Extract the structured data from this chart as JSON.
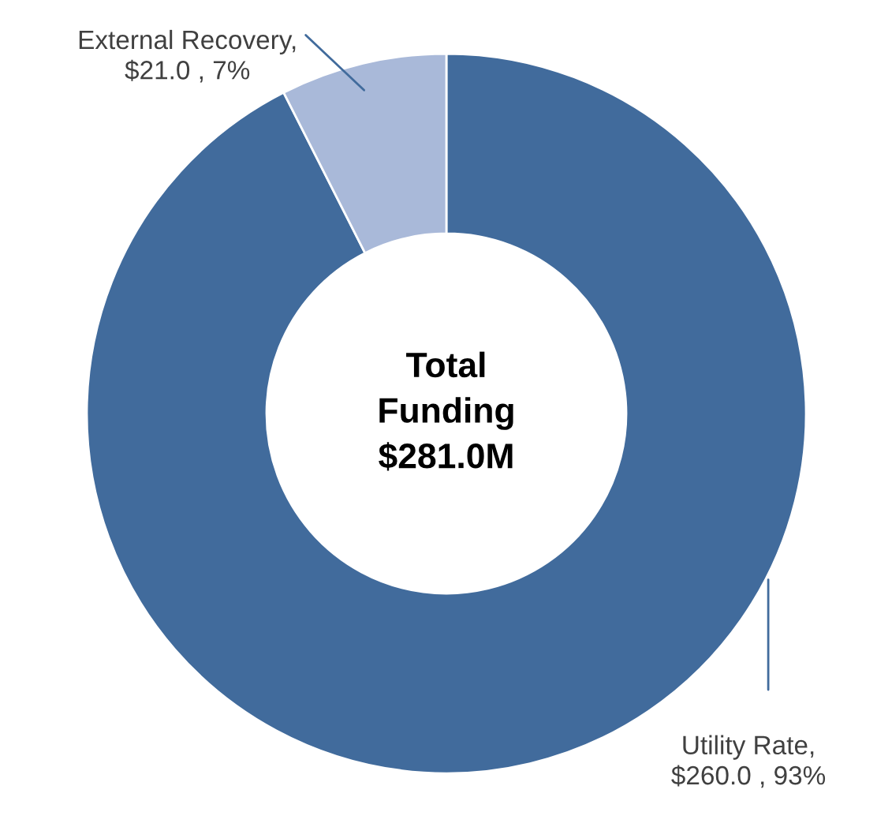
{
  "chart_data": {
    "type": "donut",
    "categories": [
      "Utility Rate",
      "External Recovery"
    ],
    "values": [
      260.0,
      21.0
    ],
    "value_labels": [
      ",\n$260.0 , 93%",
      ",\n$21.0 , 7%"
    ],
    "colors": [
      "#416b9c",
      "#a9b9d9"
    ],
    "annotations": [
      "Total\nFunding\n$281.0M"
    ]
  }
}
